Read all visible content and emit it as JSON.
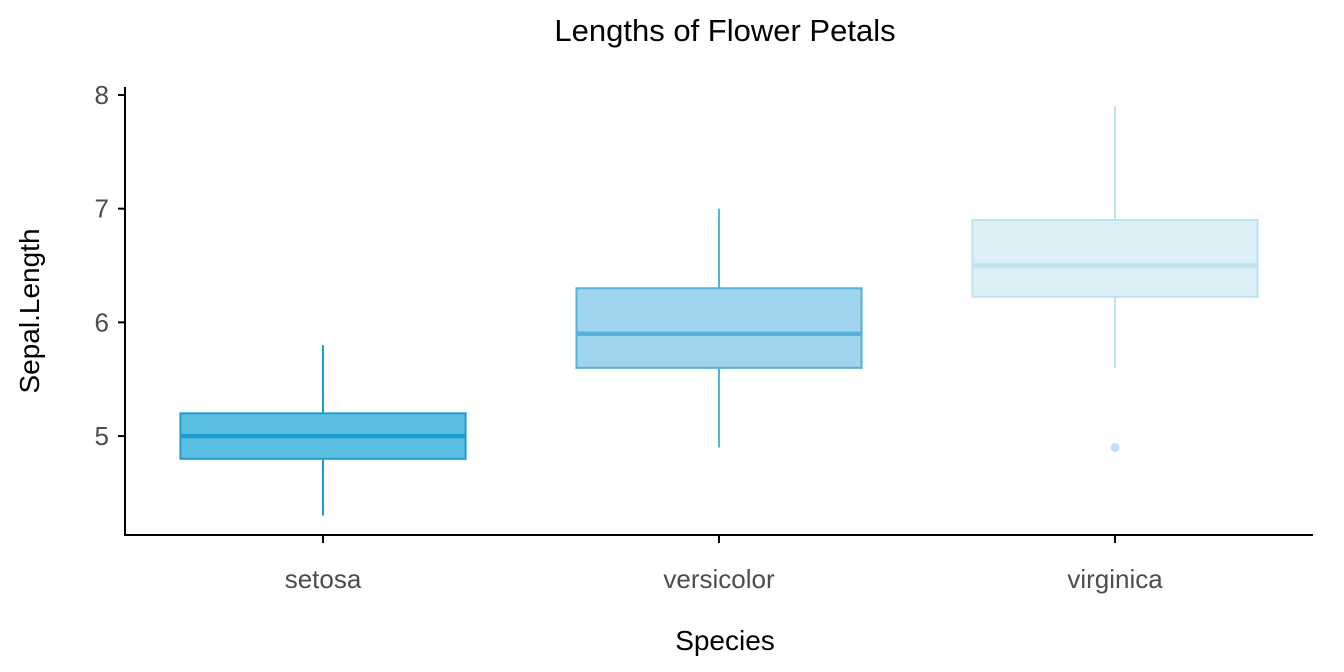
{
  "chart_data": {
    "type": "box",
    "title": "Lengths of Flower Petals",
    "xlabel": "Species",
    "ylabel": "Sepal.Length",
    "ylim": [
      4.13,
      8.07
    ],
    "yticks": [
      5,
      6,
      7,
      8
    ],
    "ytick_labels": [
      "5",
      "6",
      "7",
      "8"
    ],
    "categories": [
      "setosa",
      "versicolor",
      "virginica"
    ],
    "grid": false,
    "legend": "none",
    "boxes": [
      {
        "category": "setosa",
        "min": 4.3,
        "q1": 4.8,
        "median": 5.0,
        "q3": 5.2,
        "max": 5.8,
        "outliers": [],
        "fill": "#5bc0e2",
        "stroke": "#1a9fd0"
      },
      {
        "category": "versicolor",
        "min": 4.9,
        "q1": 5.6,
        "median": 5.9,
        "q3": 6.3,
        "max": 7.0,
        "outliers": [],
        "fill": "#9fd4ec",
        "stroke": "#52b3de"
      },
      {
        "category": "virginica",
        "min": 5.6,
        "q1": 6.225,
        "median": 6.5,
        "q3": 6.9,
        "max": 7.9,
        "outliers": [
          4.9
        ],
        "fill": "#def0f7",
        "stroke": "#bde3f1"
      }
    ]
  }
}
